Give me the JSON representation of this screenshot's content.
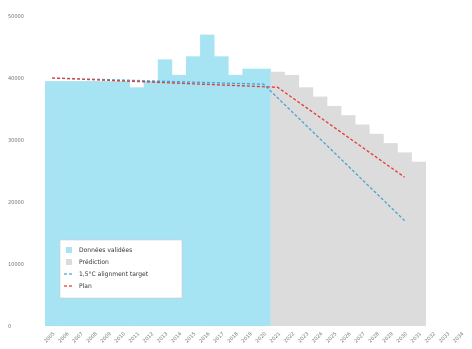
{
  "chart_data": {
    "type": "bar",
    "title": "",
    "xlabel": "",
    "ylabel": "",
    "ylim": [
      0,
      50000
    ],
    "yticks": [
      0,
      10000,
      20000,
      30000,
      40000,
      50000
    ],
    "grid": false,
    "legend_position": "bottom-left",
    "categories": [
      "2005",
      "2006",
      "2007",
      "2008",
      "2009",
      "2010",
      "2011",
      "2012",
      "2013",
      "2014",
      "2015",
      "2016",
      "2017",
      "2018",
      "2019",
      "2020",
      "2021",
      "2022",
      "2023",
      "2024",
      "2025",
      "2026",
      "2027",
      "2028",
      "2029",
      "2030",
      "2031",
      "2032",
      "2033",
      "2034"
    ],
    "series": [
      {
        "name": "Données validées",
        "color": "#a6e3f3",
        "values": [
          39500,
          39500,
          39500,
          39500,
          39500,
          39500,
          38500,
          39500,
          43000,
          40500,
          43500,
          47000,
          43500,
          40500,
          41500,
          41500,
          null,
          null,
          null,
          null,
          null,
          null,
          null,
          null,
          null,
          null,
          null,
          null,
          null,
          null
        ]
      },
      {
        "name": "Prédiction",
        "color": "#dcdcdc",
        "values": [
          null,
          null,
          null,
          null,
          null,
          null,
          null,
          null,
          null,
          null,
          null,
          null,
          null,
          null,
          null,
          null,
          41000,
          40500,
          38500,
          37000,
          35500,
          34000,
          32500,
          31000,
          29500,
          28000,
          26500,
          null,
          null,
          null
        ]
      }
    ],
    "lines": [
      {
        "name": "1,5°C alignment target",
        "color": "#4aa3d1",
        "dash": "3,2",
        "points": [
          [
            "2005",
            40000
          ],
          [
            "2020",
            39000
          ],
          [
            "2030",
            17000
          ]
        ]
      },
      {
        "name": "Plan",
        "color": "#e53935",
        "dash": "3,2",
        "points": [
          [
            "2005",
            40000
          ],
          [
            "2021",
            38500
          ],
          [
            "2030",
            24000
          ]
        ]
      }
    ]
  }
}
